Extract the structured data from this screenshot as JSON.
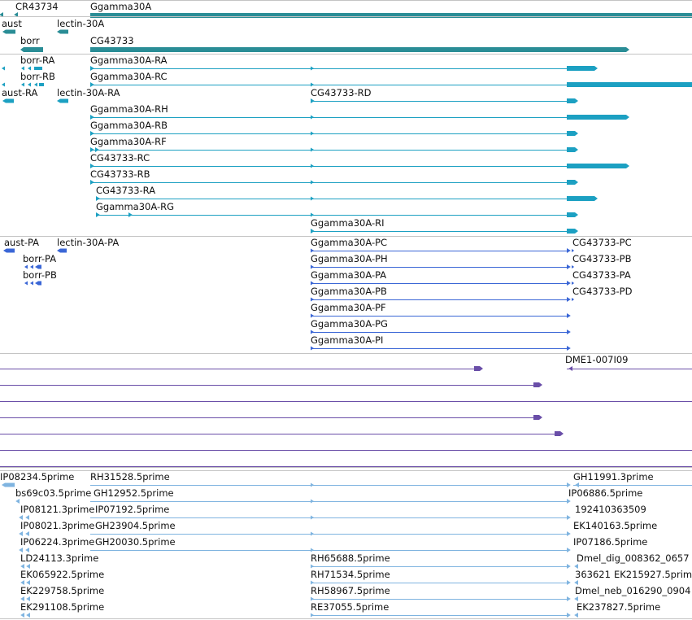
{
  "colors": {
    "gene": "#2a8d96",
    "transcript": "#1ca0c2",
    "protein": "#3a66d6",
    "clone": "#6a4ea8",
    "est": "#7fb4e0",
    "separator": "#c4c4c4"
  },
  "tracks": {
    "genes": [
      "CR43734",
      "Ggamma30A",
      "aust",
      "lectin-30A",
      "borr",
      "CG43733"
    ],
    "transcripts": [
      "borr-RA",
      "Ggamma30A-RA",
      "borr-RB",
      "Ggamma30A-RC",
      "aust-RA",
      "lectin-30A-RA",
      "CG43733-RD",
      "Ggamma30A-RH",
      "Ggamma30A-RB",
      "Ggamma30A-RF",
      "CG43733-RC",
      "CG43733-RB",
      "CG43733-RA",
      "Ggamma30A-RG",
      "Ggamma30A-RI"
    ],
    "proteins": [
      "aust-PA",
      "lectin-30A-PA",
      "Ggamma30A-PC",
      "CG43733-PC",
      "borr-PA",
      "Ggamma30A-PH",
      "CG43733-PB",
      "borr-PB",
      "Ggamma30A-PA",
      "CG43733-PA",
      "Ggamma30A-PB",
      "CG43733-PD",
      "Ggamma30A-PF",
      "Ggamma30A-PG",
      "Ggamma30A-PI"
    ],
    "clones": [
      "DME1-007I09"
    ],
    "ests": [
      "IP08234.5prime",
      "RH31528.5prime",
      "GH11991.3prime",
      "bs69c03.5prime",
      "GH12952.5prime",
      "IP06886.5prime",
      "IP08121.3prime",
      "IP07192.5prime",
      "192410363509",
      "IP08021.3prime",
      "GH23904.5prime",
      "EK140163.5prime",
      "IP06224.3prime",
      "GH20030.5prime",
      "IP07186.5prime",
      "LD24113.3prime",
      "RH65688.5prime",
      "Dmel_dig_008362_0657",
      "EK065922.5prime",
      "RH71534.5prime",
      "363621",
      "EK215927.5prime",
      "EK229758.5prime",
      "RH58967.5prime",
      "Dmel_neb_016290_0904",
      "EK291108.5prime",
      "RE37055.5prime",
      "EK237827.5prime"
    ]
  }
}
